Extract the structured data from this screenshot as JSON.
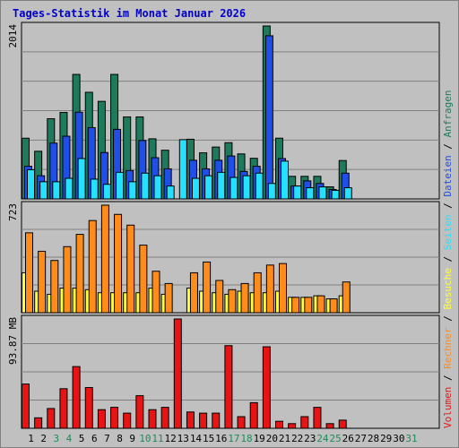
{
  "title": "Tages-Statistik im Monat Januar 2026",
  "colors": {
    "background": "#ffffff",
    "outer_panel": "#c0c0c0",
    "plot_area": "#c0c0c0",
    "gridline": "#808080",
    "title": "#0000cc",
    "anfragen": "#1e7a5c",
    "dateien": "#1f4fe8",
    "seiten": "#26e0ff",
    "besuche": "#ffff33",
    "rechner": "#ff8c1a",
    "volumen": "#e81414",
    "weekday_label": "#000000",
    "weekend_label": "#1e8a5a"
  },
  "chart_data": [
    {
      "type": "bar",
      "ymax_label": "2014",
      "categories": [
        "1",
        "2",
        "3",
        "4",
        "5",
        "6",
        "7",
        "8",
        "9",
        "10",
        "11",
        "12",
        "13",
        "14",
        "15",
        "16",
        "17",
        "18",
        "19",
        "20",
        "21",
        "22",
        "23",
        "24",
        "25",
        "26",
        "27",
        "28",
        "29",
        "30",
        "31"
      ],
      "series": [
        {
          "name": "Anfragen",
          "color": "anfragen",
          "values": [
            707,
            555,
            934,
            1007,
            1450,
            1242,
            1136,
            1450,
            955,
            955,
            700,
            567,
            0,
            695,
            537,
            604,
            655,
            524,
            473,
            2014,
            707,
            263,
            263,
            263,
            141,
            447,
            0,
            0,
            0,
            0,
            0
          ]
        },
        {
          "name": "Dateien",
          "color": "dateien",
          "values": [
            380,
            270,
            650,
            730,
            1010,
            830,
            540,
            810,
            330,
            680,
            480,
            350,
            0,
            450,
            350,
            450,
            500,
            320,
            380,
            1900,
            470,
            150,
            210,
            180,
            110,
            300,
            0,
            0,
            0,
            0,
            0
          ]
        },
        {
          "name": "Seiten",
          "color": "seiten",
          "values": [
            340,
            200,
            200,
            240,
            470,
            230,
            170,
            310,
            200,
            300,
            270,
            150,
            690,
            240,
            270,
            310,
            250,
            270,
            300,
            180,
            440,
            150,
            130,
            140,
            100,
            130,
            0,
            0,
            0,
            0,
            0
          ]
        }
      ]
    },
    {
      "type": "bar",
      "ymax_label": "723",
      "categories": [
        "1",
        "2",
        "3",
        "4",
        "5",
        "6",
        "7",
        "8",
        "9",
        "10",
        "11",
        "12",
        "13",
        "14",
        "15",
        "16",
        "17",
        "18",
        "19",
        "20",
        "21",
        "22",
        "23",
        "24",
        "25",
        "26",
        "27",
        "28",
        "29",
        "30",
        "31"
      ],
      "series": [
        {
          "name": "Besuche",
          "color": "besuche",
          "values": [
            260,
            140,
            120,
            160,
            160,
            150,
            130,
            130,
            130,
            130,
            160,
            120,
            0,
            160,
            140,
            130,
            120,
            140,
            130,
            130,
            140,
            100,
            100,
            110,
            90,
            110,
            0,
            0,
            0,
            0,
            0
          ]
        },
        {
          "name": "Rechner",
          "color": "rechner",
          "values": [
            520,
            400,
            340,
            430,
            510,
            600,
            700,
            640,
            570,
            440,
            270,
            190,
            0,
            260,
            330,
            210,
            150,
            190,
            260,
            310,
            320,
            100,
            100,
            110,
            90,
            200,
            0,
            0,
            0,
            0,
            0
          ]
        }
      ]
    },
    {
      "type": "bar",
      "ymax_label": "93.87 MB",
      "categories": [
        "1",
        "2",
        "3",
        "4",
        "5",
        "6",
        "7",
        "8",
        "9",
        "10",
        "11",
        "12",
        "13",
        "14",
        "15",
        "16",
        "17",
        "18",
        "19",
        "20",
        "21",
        "22",
        "23",
        "24",
        "25",
        "26",
        "27",
        "28",
        "29",
        "30",
        "31"
      ],
      "series": [
        {
          "name": "Volumen",
          "color": "volumen",
          "values": [
            38,
            9,
            17,
            34,
            53,
            35,
            16,
            18,
            13,
            28,
            16,
            18,
            93.87,
            14,
            13,
            13,
            71,
            10,
            22,
            70,
            6,
            4,
            10,
            18,
            4,
            7,
            0,
            0,
            0,
            0,
            0
          ]
        }
      ]
    }
  ],
  "weekend_days": [
    3,
    4,
    10,
    11,
    17,
    18,
    24,
    25,
    31
  ],
  "legend": {
    "separator": " / ",
    "items": [
      {
        "label": "Volumen",
        "color": "volumen"
      },
      {
        "label": "Rechner",
        "color": "rechner"
      },
      {
        "label": "Besuche",
        "color": "besuche"
      },
      {
        "label": "Seiten",
        "color": "seiten"
      },
      {
        "label": "Dateien",
        "color": "dateien"
      },
      {
        "label": "Anfragen",
        "color": "anfragen"
      }
    ]
  }
}
